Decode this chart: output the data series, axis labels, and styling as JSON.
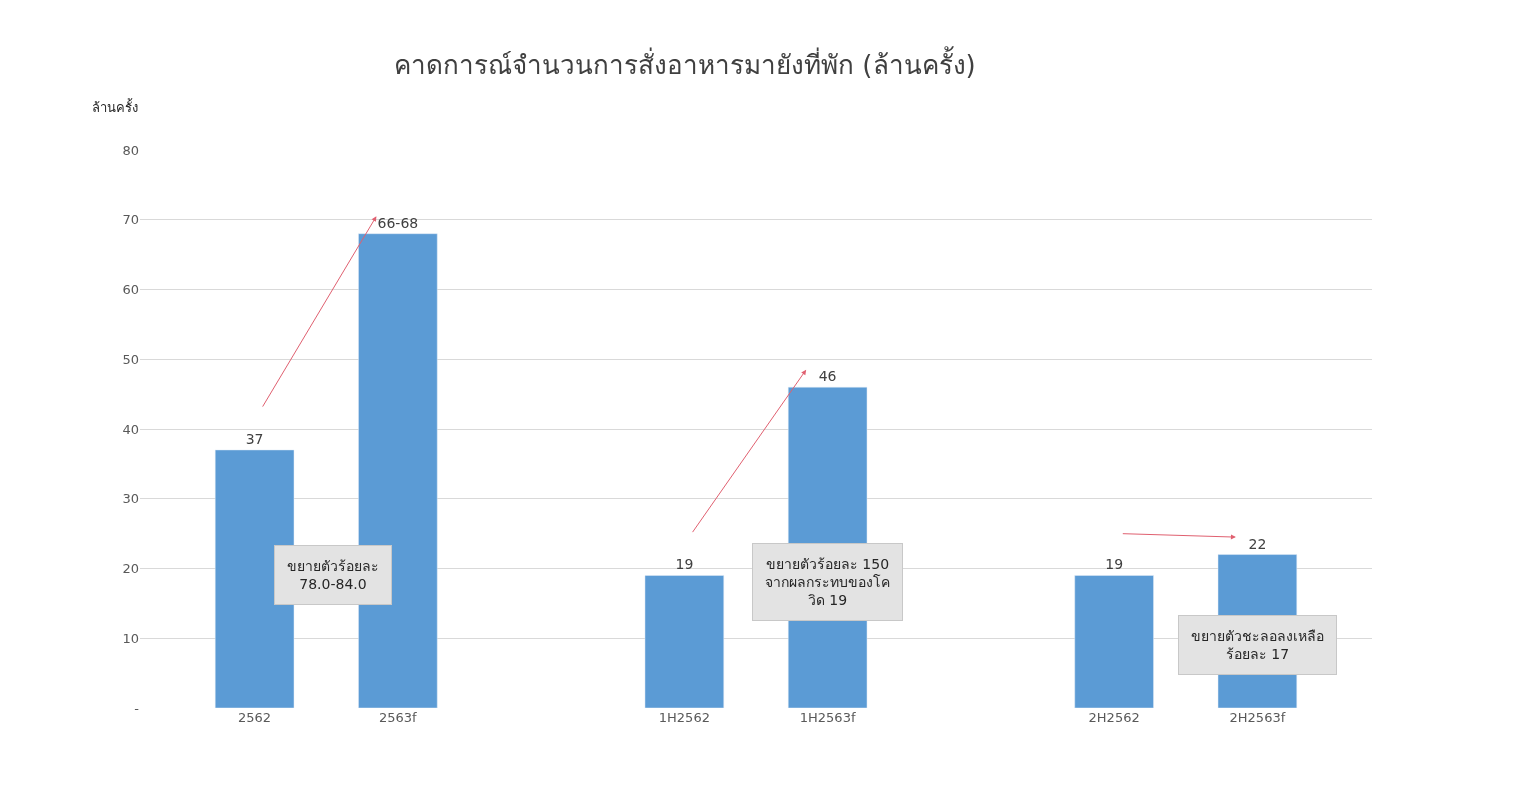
{
  "chart_data": {
    "type": "bar",
    "title": "คาดการณ์จำนวนการสั่งอาหารมายังที่พัก (ล้านครั้ง)",
    "ylabel": "ล้านครั้ง",
    "categories": [
      "2562",
      "2563f",
      null,
      "1H2562",
      "1H2563f",
      null,
      "2H2562",
      "2H2563f"
    ],
    "values": [
      37,
      68,
      null,
      19,
      46,
      null,
      19,
      22
    ],
    "value_labels": [
      "37",
      "66-68",
      null,
      "19",
      "46",
      null,
      "19",
      "22"
    ],
    "color": "#5b9bd5",
    "ylim": [
      0,
      80
    ],
    "yticks": [
      {
        "value": 0,
        "label": "-"
      },
      10,
      20,
      30,
      40,
      50,
      60,
      70,
      80
    ],
    "grid": "y",
    "annotations": [
      "ขยายตัวร้อยละ\n78.0-84.0",
      "ขยายตัวร้อยละ 150\nจากผลกระทบของโค\nวิด 19",
      "ขยายตัวชะลอลงเหลือ\nร้อยละ 17"
    ]
  }
}
